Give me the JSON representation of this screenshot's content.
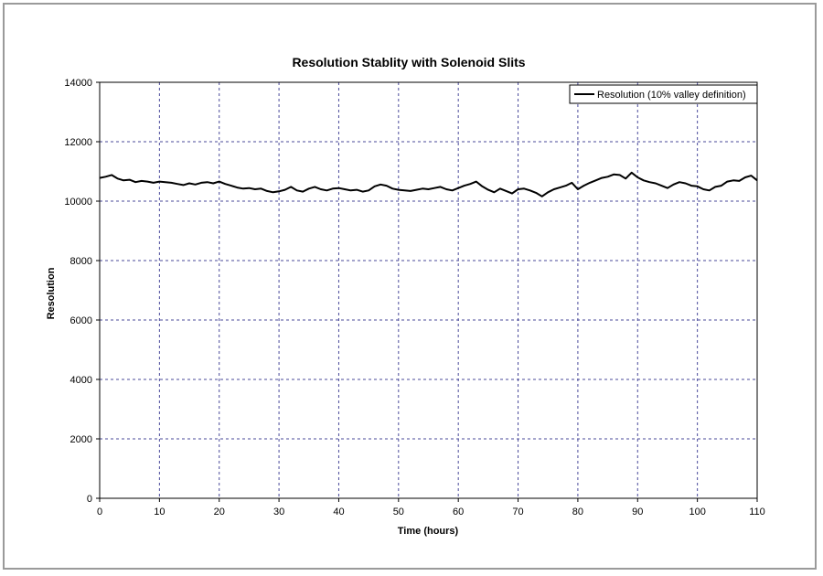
{
  "chart_data": {
    "type": "line",
    "title": "Resolution Stablity with Solenoid Slits",
    "xlabel": "Time (hours)",
    "ylabel": "Resolution",
    "xlim": [
      0,
      110
    ],
    "ylim": [
      0,
      14000
    ],
    "x_ticks": [
      "0",
      "10",
      "20",
      "30",
      "40",
      "50",
      "60",
      "70",
      "80",
      "90",
      "100",
      "110"
    ],
    "y_ticks": [
      "0",
      "2000",
      "4000",
      "6000",
      "8000",
      "10000",
      "12000",
      "14000"
    ],
    "grid": true,
    "legend_position": "top-right",
    "series_color": "#000000",
    "series": [
      {
        "name": "Resolution (10% valley definition)",
        "x": [
          0,
          1,
          2,
          3,
          4,
          5,
          6,
          7,
          8,
          9,
          10,
          11,
          12,
          13,
          14,
          15,
          16,
          17,
          18,
          19,
          20,
          21,
          22,
          23,
          24,
          25,
          26,
          27,
          28,
          29,
          30,
          31,
          32,
          33,
          34,
          35,
          36,
          37,
          38,
          39,
          40,
          41,
          42,
          43,
          44,
          45,
          46,
          47,
          48,
          49,
          50,
          51,
          52,
          53,
          54,
          55,
          56,
          57,
          58,
          59,
          60,
          61,
          62,
          63,
          64,
          65,
          66,
          67,
          68,
          69,
          70,
          71,
          72,
          73,
          74,
          75,
          76,
          77,
          78,
          79,
          80,
          81,
          82,
          83,
          84,
          85,
          86,
          87,
          88,
          89,
          90,
          91,
          92,
          93,
          94,
          95,
          96,
          97,
          98,
          99,
          100,
          101,
          102,
          103,
          104,
          105,
          106,
          107,
          108,
          109,
          110
        ],
        "values": [
          10780,
          10820,
          10880,
          10760,
          10700,
          10720,
          10640,
          10680,
          10660,
          10620,
          10660,
          10640,
          10620,
          10580,
          10540,
          10600,
          10560,
          10620,
          10640,
          10600,
          10660,
          10580,
          10520,
          10460,
          10420,
          10440,
          10400,
          10420,
          10340,
          10300,
          10330,
          10380,
          10480,
          10360,
          10320,
          10420,
          10480,
          10400,
          10360,
          10420,
          10440,
          10400,
          10360,
          10380,
          10320,
          10360,
          10500,
          10560,
          10520,
          10420,
          10380,
          10360,
          10340,
          10380,
          10420,
          10400,
          10440,
          10480,
          10400,
          10360,
          10440,
          10520,
          10580,
          10660,
          10500,
          10380,
          10300,
          10420,
          10340,
          10260,
          10400,
          10420,
          10360,
          10280,
          10160,
          10300,
          10400,
          10460,
          10520,
          10620,
          10400,
          10520,
          10620,
          10700,
          10780,
          10820,
          10900,
          10880,
          10760,
          10960,
          10800,
          10700,
          10640,
          10600,
          10520,
          10440,
          10560,
          10640,
          10600,
          10520,
          10500,
          10400,
          10360,
          10480,
          10520,
          10660,
          10700,
          10680,
          10800,
          10860,
          10700
        ]
      }
    ]
  }
}
